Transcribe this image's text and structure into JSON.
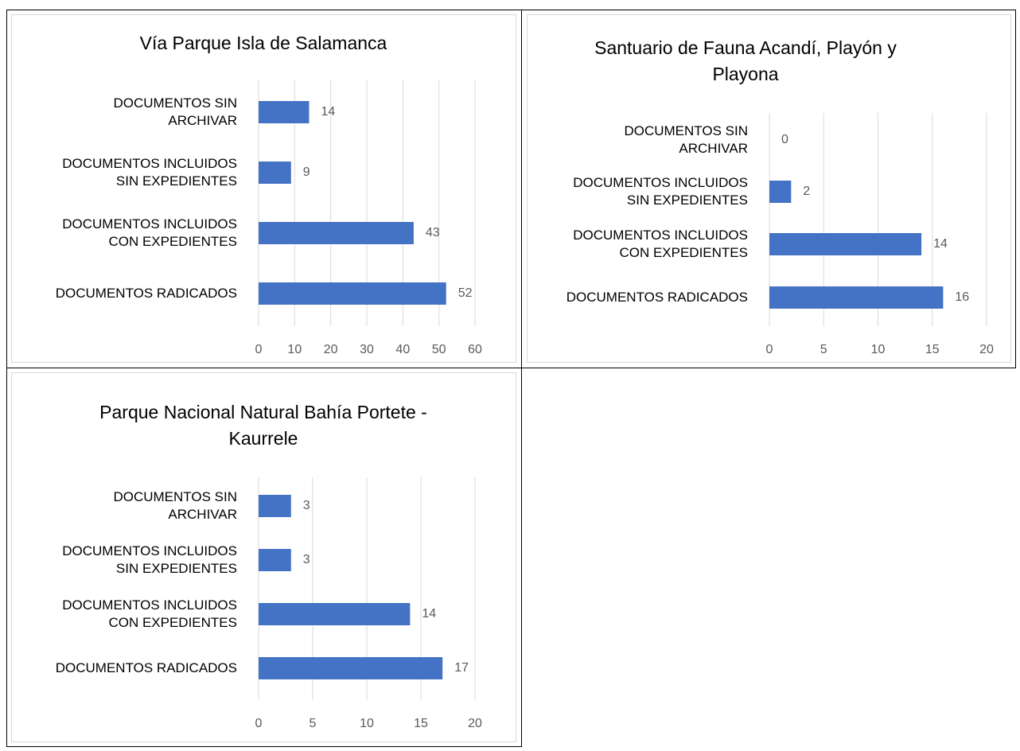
{
  "chart_data": [
    {
      "type": "bar",
      "orientation": "horizontal",
      "title": "Vía Parque Isla de Salamanca",
      "categories": [
        "DOCUMENTOS SIN\nARCHIVAR",
        "DOCUMENTOS INCLUIDOS\nSIN EXPEDIENTES",
        "DOCUMENTOS INCLUIDOS\nCON EXPEDIENTES",
        "DOCUMENTOS RADICADOS"
      ],
      "values": [
        14,
        9,
        43,
        52
      ],
      "color": "#4472c4",
      "xlim": [
        0,
        60
      ],
      "xticks": [
        0,
        10,
        20,
        30,
        40,
        50,
        60
      ],
      "grid": true
    },
    {
      "type": "bar",
      "orientation": "horizontal",
      "title": "Santuario de Fauna Acandí, Playón y\nPlayona",
      "categories": [
        "DOCUMENTOS SIN\nARCHIVAR",
        "DOCUMENTOS INCLUIDOS\nSIN EXPEDIENTES",
        "DOCUMENTOS INCLUIDOS\nCON EXPEDIENTES",
        "DOCUMENTOS RADICADOS"
      ],
      "values": [
        0,
        2,
        14,
        16
      ],
      "color": "#4472c4",
      "xlim": [
        0,
        20
      ],
      "xticks": [
        0,
        5,
        10,
        15,
        20
      ],
      "grid": true
    },
    {
      "type": "bar",
      "orientation": "horizontal",
      "title": "Parque Nacional Natural Bahía Portete -\nKaurrele",
      "categories": [
        "DOCUMENTOS SIN\nARCHIVAR",
        "DOCUMENTOS INCLUIDOS\nSIN EXPEDIENTES",
        "DOCUMENTOS INCLUIDOS\nCON EXPEDIENTES",
        "DOCUMENTOS RADICADOS"
      ],
      "values": [
        3,
        3,
        14,
        17
      ],
      "color": "#4472c4",
      "xlim": [
        0,
        20
      ],
      "xticks": [
        0,
        5,
        10,
        15,
        20
      ],
      "grid": true
    }
  ]
}
